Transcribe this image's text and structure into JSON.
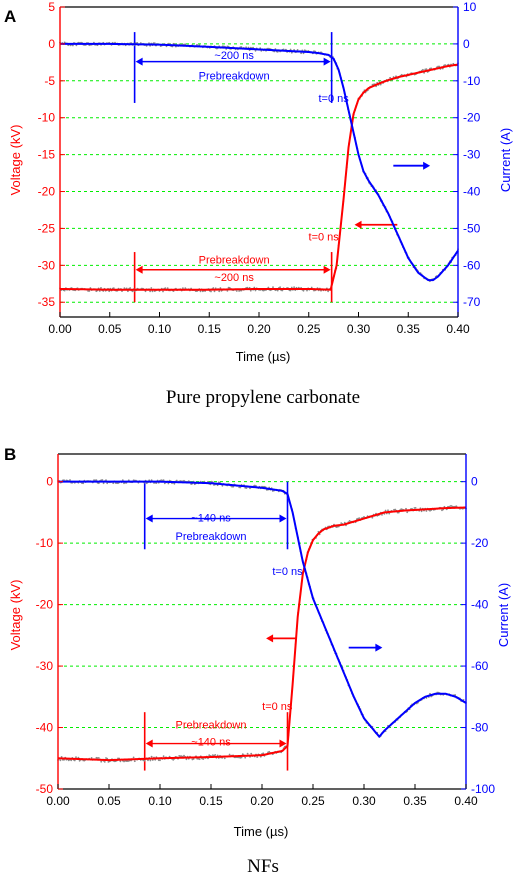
{
  "colors": {
    "voltage": "#ff0000",
    "current": "#0000ff",
    "grid": "#00ee00",
    "noise": "#8a8a8a",
    "axis": "#000000"
  },
  "chart_data": [
    {
      "type": "line",
      "panel_label": "A",
      "caption": "Pure propylene carbonate",
      "xlabel": "Time (µs)",
      "ylabel_left": "Voltage (kV)",
      "ylabel_right": "Current (A)",
      "xlim": [
        0.0,
        0.4
      ],
      "ylim_left": [
        -37,
        5
      ],
      "ylim_right": [
        -74,
        10
      ],
      "x_ticks": [
        "0.00",
        "0.05",
        "0.10",
        "0.15",
        "0.20",
        "0.25",
        "0.30",
        "0.35",
        "0.40"
      ],
      "y_left_ticks": [
        "5",
        "0",
        "-5",
        "-10",
        "-15",
        "-20",
        "-25",
        "-30",
        "-35"
      ],
      "y_right_ticks": [
        "10",
        "0",
        "-10",
        "-20",
        "-30",
        "-40",
        "-50",
        "-60",
        "-70"
      ],
      "grid": "horizontal dashed",
      "series": [
        {
          "axis": "left",
          "x": [
            0.0,
            0.05,
            0.1,
            0.15,
            0.2,
            0.25,
            0.272,
            0.278,
            0.285,
            0.29,
            0.295,
            0.3,
            0.305,
            0.31,
            0.32,
            0.33,
            0.34,
            0.35,
            0.36,
            0.37,
            0.38,
            0.39,
            0.4
          ],
          "values": [
            -33.2,
            -33.3,
            -33.3,
            -33.3,
            -33.2,
            -33.2,
            -33.3,
            -30,
            -21,
            -14,
            -9.5,
            -7.5,
            -6.6,
            -6,
            -5.4,
            -4.9,
            -4.5,
            -4.2,
            -3.9,
            -3.6,
            -3.3,
            -3.0,
            -2.8
          ]
        },
        {
          "axis": "right",
          "x": [
            0.0,
            0.05,
            0.1,
            0.15,
            0.2,
            0.25,
            0.26,
            0.27,
            0.275,
            0.28,
            0.285,
            0.29,
            0.295,
            0.3,
            0.305,
            0.31,
            0.32,
            0.33,
            0.34,
            0.35,
            0.36,
            0.37,
            0.375,
            0.38,
            0.39,
            0.4
          ],
          "values": [
            0,
            0,
            -0.2,
            -0.8,
            -1.5,
            -2.2,
            -2.5,
            -3,
            -4,
            -7,
            -12,
            -18,
            -24,
            -30,
            -34.5,
            -37,
            -41,
            -46,
            -52,
            -58,
            -62,
            -64,
            -64,
            -63,
            -60,
            -56
          ]
        }
      ],
      "annotations": [
        {
          "text": "~200 ns",
          "x": 0.175,
          "y": -1.5,
          "axis": "left",
          "color": "current"
        },
        {
          "text": "Prebreakdown",
          "x": 0.175,
          "y": -4.3,
          "axis": "left",
          "color": "current"
        },
        {
          "text": "t=0 ns",
          "x": 0.275,
          "y": -7.3,
          "axis": "left",
          "color": "current"
        },
        {
          "text": "Prebreakdown",
          "x": 0.175,
          "y": -29.2,
          "axis": "left",
          "color": "voltage"
        },
        {
          "text": "~200 ns",
          "x": 0.175,
          "y": -31.6,
          "axis": "left",
          "color": "voltage"
        },
        {
          "text": "t=0 ns",
          "x": 0.265,
          "y": -26.1,
          "axis": "left",
          "color": "voltage"
        }
      ]
    },
    {
      "type": "line",
      "panel_label": "B",
      "caption": "NFs",
      "xlabel": "Time (µs)",
      "ylabel_left": "Voltage (kV)",
      "ylabel_right": "Current (A)",
      "xlim": [
        0.0,
        0.4
      ],
      "ylim_left": [
        -50,
        4.5
      ],
      "ylim_right": [
        -100,
        9
      ],
      "x_ticks": [
        "0.00",
        "0.05",
        "0.10",
        "0.15",
        "0.20",
        "0.25",
        "0.30",
        "0.35",
        "0.40"
      ],
      "y_left_ticks": [
        "0",
        "-10",
        "-20",
        "-30",
        "-40",
        "-50"
      ],
      "y_right_ticks": [
        "0",
        "-20",
        "-40",
        "-60",
        "-80",
        "-100"
      ],
      "grid": "horizontal dashed",
      "series": [
        {
          "axis": "left",
          "x": [
            0.0,
            0.05,
            0.1,
            0.15,
            0.2,
            0.22,
            0.225,
            0.23,
            0.235,
            0.24,
            0.245,
            0.25,
            0.255,
            0.26,
            0.27,
            0.28,
            0.29,
            0.3,
            0.32,
            0.34,
            0.36,
            0.38,
            0.4
          ],
          "values": [
            -45,
            -45.3,
            -45,
            -44.8,
            -44.5,
            -43.8,
            -43,
            -33,
            -22,
            -15,
            -11.5,
            -9.5,
            -8.5,
            -7.8,
            -7.2,
            -7,
            -6.5,
            -6,
            -5,
            -4.7,
            -4.5,
            -4.3,
            -4.2
          ]
        },
        {
          "axis": "right",
          "x": [
            0.0,
            0.05,
            0.1,
            0.15,
            0.2,
            0.21,
            0.22,
            0.225,
            0.23,
            0.235,
            0.24,
            0.245,
            0.25,
            0.26,
            0.27,
            0.28,
            0.29,
            0.3,
            0.31,
            0.315,
            0.32,
            0.33,
            0.34,
            0.35,
            0.36,
            0.37,
            0.38,
            0.39,
            0.4
          ],
          "values": [
            0,
            0,
            0,
            -0.5,
            -2,
            -2.5,
            -3,
            -4,
            -10,
            -18,
            -26,
            -32,
            -38,
            -46,
            -54,
            -62,
            -70,
            -77,
            -81,
            -83,
            -81,
            -78,
            -75,
            -72,
            -70,
            -69,
            -69,
            -70,
            -72
          ]
        }
      ],
      "annotations": [
        {
          "text": "~140 ns",
          "x": 0.15,
          "y": -5.8,
          "axis": "left",
          "color": "current"
        },
        {
          "text": "Prebreakdown",
          "x": 0.15,
          "y": -8.8,
          "axis": "left",
          "color": "current"
        },
        {
          "text": "t=0 ns",
          "x": 0.225,
          "y": -14.5,
          "axis": "left",
          "color": "current"
        },
        {
          "text": "Prebreakdown",
          "x": 0.15,
          "y": -39.5,
          "axis": "left",
          "color": "voltage"
        },
        {
          "text": "~140 ns",
          "x": 0.15,
          "y": -42.3,
          "axis": "left",
          "color": "voltage"
        },
        {
          "text": "t=0 ns",
          "x": 0.215,
          "y": -36.5,
          "axis": "left",
          "color": "voltage"
        }
      ]
    }
  ]
}
